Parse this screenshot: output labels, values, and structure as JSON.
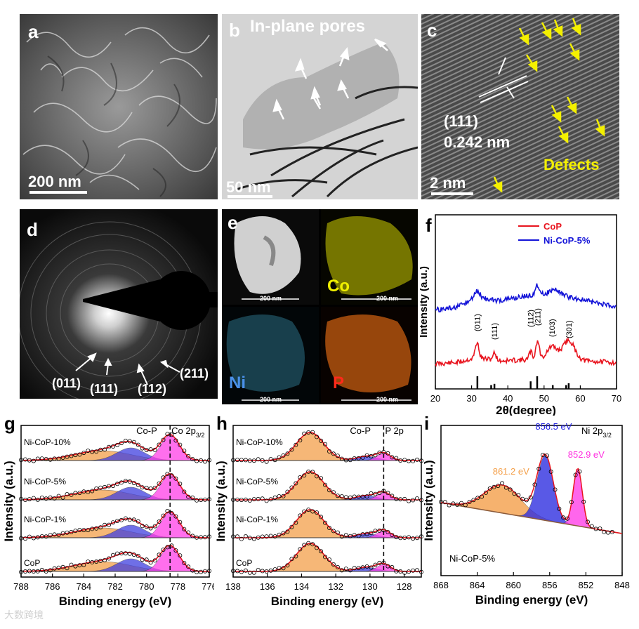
{
  "panels": {
    "a": {
      "label": "a",
      "scale": "200 nm"
    },
    "b": {
      "label": "b",
      "title": "In-plane pores",
      "scale": "50 nm"
    },
    "c": {
      "label": "c",
      "plane": "(111)",
      "spacing": "0.242 nm",
      "defects": "Defects",
      "scale": "2 nm"
    },
    "d": {
      "label": "d",
      "rings": [
        "(011)",
        "(111)",
        "(112)",
        "(211)"
      ]
    },
    "e": {
      "label": "e",
      "maps": [
        "Co",
        "Ni",
        "P"
      ],
      "scale": "200 nm"
    },
    "f": {
      "label": "f"
    },
    "g": {
      "label": "g"
    },
    "h": {
      "label": "h"
    },
    "i": {
      "label": "i"
    }
  },
  "watermark": "大数跨境",
  "colors": {
    "red": "#e8141e",
    "blue": "#1414d8",
    "orange": "#f4a04a",
    "magenta": "#ff40e8",
    "yellow": "#f0f000"
  },
  "chart_data": [
    {
      "id": "f",
      "type": "line",
      "xlabel": "2θ(degree)",
      "ylabel": "Intensity (a.u.)",
      "xlim": [
        20,
        70
      ],
      "xticks": [
        20,
        30,
        40,
        50,
        60,
        70
      ],
      "legend": [
        "CoP",
        "Ni-CoP-5%"
      ],
      "peak_labels": [
        {
          "x": 31.5,
          "label": "(011)"
        },
        {
          "x": 36.3,
          "label": "(111)"
        },
        {
          "x": 46.3,
          "label": "(112)"
        },
        {
          "x": 48.2,
          "label": "(211)"
        },
        {
          "x": 52.2,
          "label": "(103)"
        },
        {
          "x": 56.8,
          "label": "(301)"
        }
      ],
      "reference_bars": [
        {
          "x": 31.6,
          "h": 1.0
        },
        {
          "x": 35.4,
          "h": 0.3
        },
        {
          "x": 36.3,
          "h": 0.4
        },
        {
          "x": 46.3,
          "h": 0.6
        },
        {
          "x": 48.1,
          "h": 1.0
        },
        {
          "x": 52.4,
          "h": 0.3
        },
        {
          "x": 56.1,
          "h": 0.3
        },
        {
          "x": 56.8,
          "h": 0.45
        }
      ]
    },
    {
      "id": "g",
      "type": "line",
      "xlabel": "Binding energy (eV)",
      "ylabel": "Intensity (a.u.)",
      "xlim": [
        788,
        776
      ],
      "xticks": [
        788,
        786,
        784,
        782,
        780,
        778,
        776
      ],
      "annotation": "Co-P",
      "region": "Co 2p",
      "region_sub": "3/2",
      "dashed_x": 778.5,
      "series": [
        "Ni-CoP-10%",
        "Ni-CoP-5%",
        "Ni-CoP-1%",
        "CoP"
      ]
    },
    {
      "id": "h",
      "type": "line",
      "xlabel": "Binding energy (eV)",
      "ylabel": "Intensity (a.u.)",
      "xlim": [
        138,
        127
      ],
      "xticks": [
        138,
        136,
        134,
        132,
        130,
        128
      ],
      "annotation": "Co-P",
      "region": "P 2p",
      "dashed_x": 129.2,
      "series": [
        "Ni-CoP-10%",
        "Ni-CoP-5%",
        "Ni-CoP-1%",
        "CoP"
      ]
    },
    {
      "id": "i",
      "type": "line",
      "xlabel": "Binding energy (eV)",
      "ylabel": "Intensity (a.u.)",
      "xlim": [
        868,
        848
      ],
      "xticks": [
        868,
        864,
        860,
        856,
        852,
        848
      ],
      "region": "Ni 2p",
      "region_sub": "3/2",
      "sample": "Ni-CoP-5%",
      "peaks": [
        {
          "label": "861.2 eV",
          "x": 861.2,
          "color": "#f4a04a"
        },
        {
          "label": "856.5 eV",
          "x": 856.5,
          "color": "#2020e0"
        },
        {
          "label": "852.9 eV",
          "x": 852.9,
          "color": "#ff30e0"
        }
      ]
    }
  ]
}
